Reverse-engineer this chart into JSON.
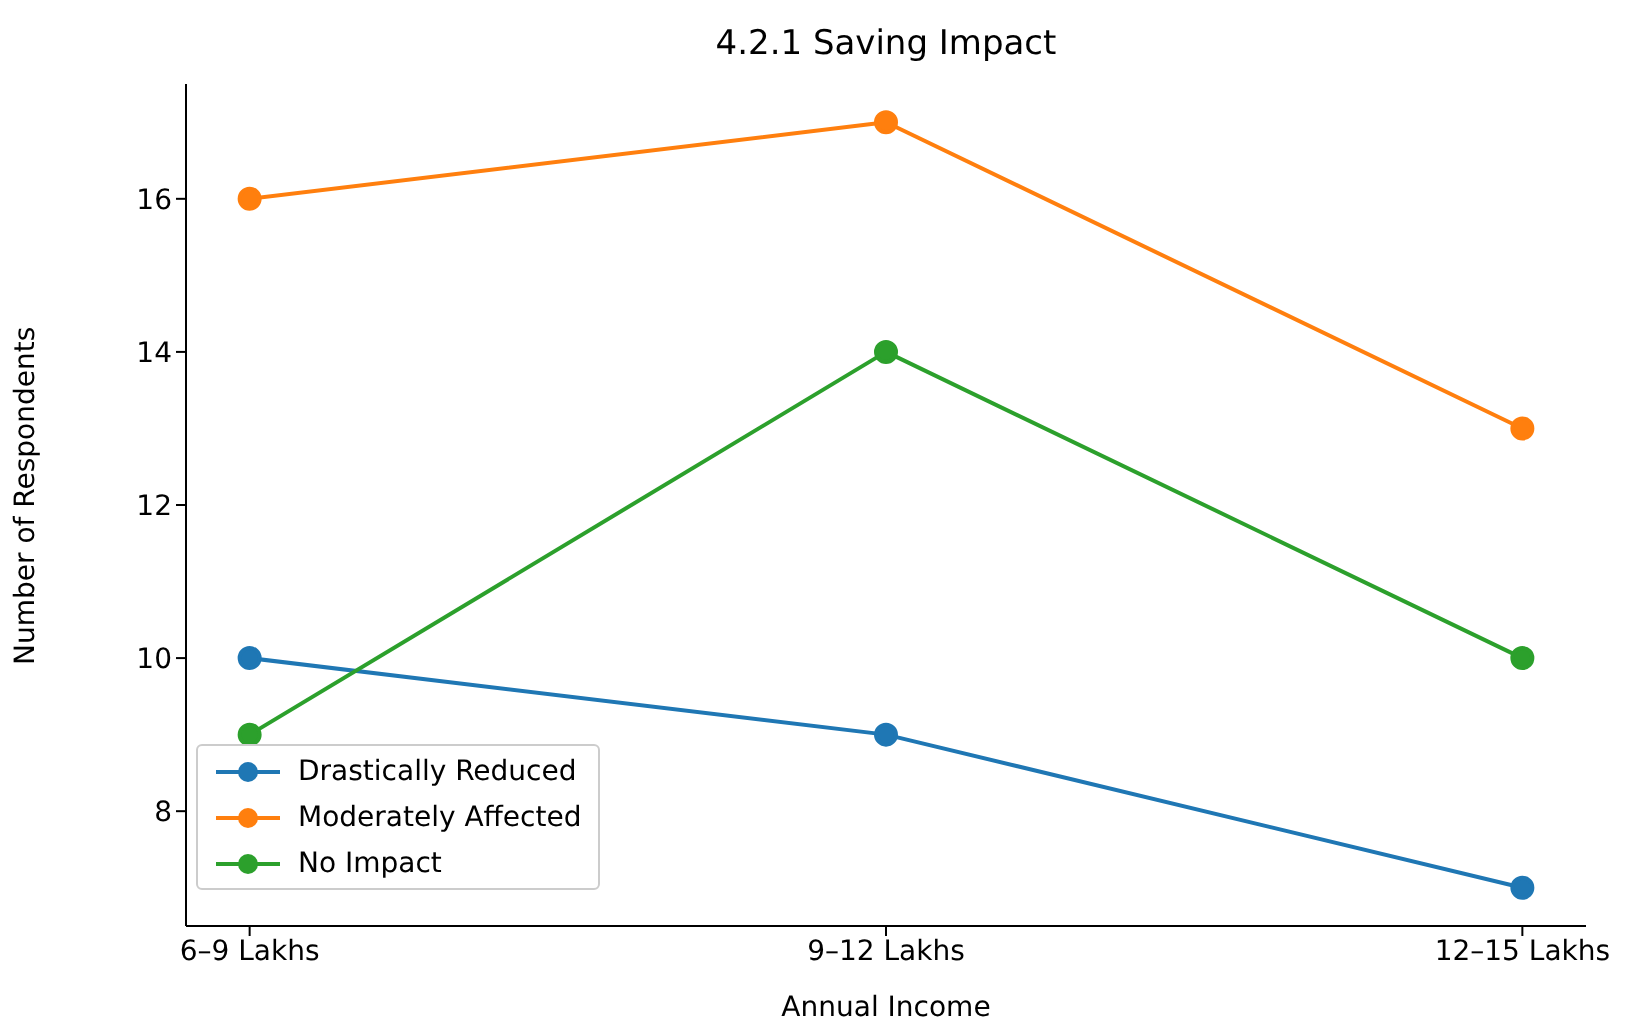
{
  "chart_data": {
    "type": "line",
    "title": "4.2.1 Saving Impact",
    "xlabel": "Annual Income",
    "ylabel": "Number of Respondents",
    "categories": [
      "6–9 Lakhs",
      "9–12 Lakhs",
      "12–15 Lakhs"
    ],
    "series": [
      {
        "name": "Drastically Reduced",
        "color": "#1f77b4",
        "values": [
          10,
          9,
          7
        ]
      },
      {
        "name": "Moderately Affected",
        "color": "#ff7f0e",
        "values": [
          16,
          17,
          13
        ]
      },
      {
        "name": "No Impact",
        "color": "#2ca02c",
        "values": [
          9,
          14,
          10
        ]
      }
    ],
    "ylim": [
      6.5,
      17.5
    ],
    "yticks": [
      8,
      10,
      12,
      14,
      16
    ],
    "grid": false,
    "legend": "bottom left",
    "marker": "circle",
    "line_style": "solid"
  }
}
